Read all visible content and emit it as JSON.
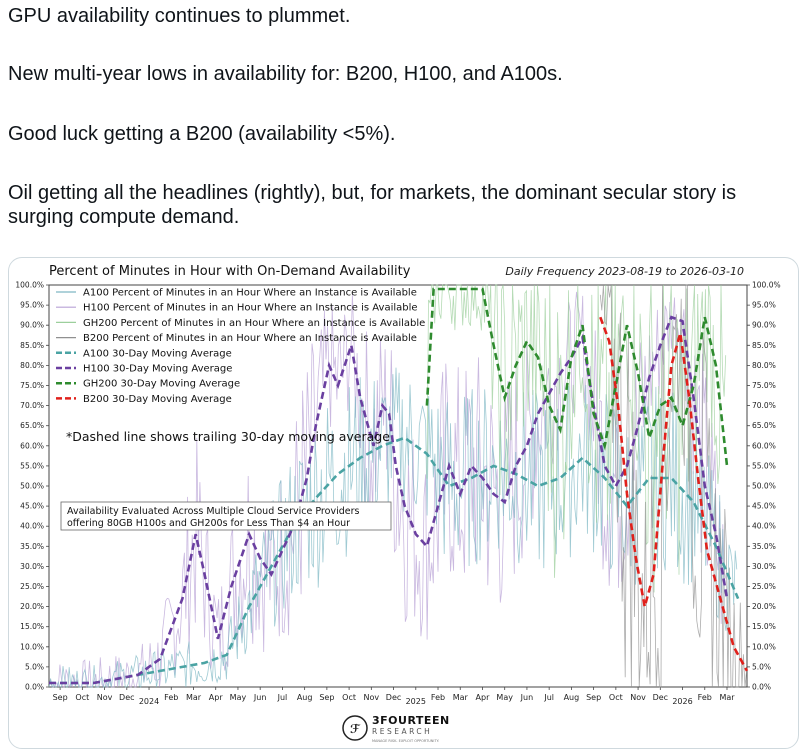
{
  "tweet": {
    "p1": "GPU availability continues to plummet.",
    "p2": "New multi-year lows in availability for: B200, H100, and A100s.",
    "p3": "Good luck getting a B200 (availability <5%).",
    "p4": "Oil getting all the headlines (rightly), but, for markets, the dominant secular story is surging compute demand."
  },
  "brand": {
    "name": "3FOURTEEN",
    "sub": "RESEARCH",
    "tagline": "MANAGE RISK. EXPLOIT OPPORTUNITY."
  },
  "chart_data": {
    "type": "line",
    "title": "Percent of Minutes in Hour with On-Demand Availability",
    "subtitle": "Daily Frequency 2023-08-19 to 2026-03-10",
    "annotation": "*Dashed line shows trailing 30-day moving average",
    "note": "Availability Evaluated Across Multiple Cloud Service Providers offering 80GB H100s and GH200s for Less Than $4 an Hour",
    "legend_position": "top-left",
    "grid": false,
    "ylim": [
      0,
      100
    ],
    "yticks": [
      "0.0%",
      "5.0%",
      "10.0%",
      "15.0%",
      "20.0%",
      "25.0%",
      "30.0%",
      "35.0%",
      "40.0%",
      "45.0%",
      "50.0%",
      "55.0%",
      "60.0%",
      "65.0%",
      "70.0%",
      "75.0%",
      "80.0%",
      "85.0%",
      "90.0%",
      "95.0%",
      "100.0%"
    ],
    "xlim": [
      0,
      31.4
    ],
    "xticks": [
      {
        "x": 0.5,
        "label": "Sep"
      },
      {
        "x": 1.5,
        "label": "Oct"
      },
      {
        "x": 2.5,
        "label": "Nov"
      },
      {
        "x": 3.5,
        "label": "Dec"
      },
      {
        "x": 4.5,
        "label": "2024"
      },
      {
        "x": 5.5,
        "label": "Feb"
      },
      {
        "x": 6.5,
        "label": "Mar"
      },
      {
        "x": 7.5,
        "label": "Apr"
      },
      {
        "x": 8.5,
        "label": "May"
      },
      {
        "x": 9.5,
        "label": "Jun"
      },
      {
        "x": 10.5,
        "label": "Jul"
      },
      {
        "x": 11.5,
        "label": "Aug"
      },
      {
        "x": 12.5,
        "label": "Sep"
      },
      {
        "x": 13.5,
        "label": "Oct"
      },
      {
        "x": 14.5,
        "label": "Nov"
      },
      {
        "x": 15.5,
        "label": "Dec"
      },
      {
        "x": 16.5,
        "label": "2025"
      },
      {
        "x": 17.5,
        "label": "Feb"
      },
      {
        "x": 18.5,
        "label": "Mar"
      },
      {
        "x": 19.5,
        "label": "Apr"
      },
      {
        "x": 20.5,
        "label": "May"
      },
      {
        "x": 21.5,
        "label": "Jun"
      },
      {
        "x": 22.5,
        "label": "Jul"
      },
      {
        "x": 23.5,
        "label": "Aug"
      },
      {
        "x": 24.5,
        "label": "Sep"
      },
      {
        "x": 25.5,
        "label": "Oct"
      },
      {
        "x": 26.5,
        "label": "Nov"
      },
      {
        "x": 27.5,
        "label": "Dec"
      },
      {
        "x": 28.5,
        "label": "2026"
      },
      {
        "x": 29.5,
        "label": "Feb"
      },
      {
        "x": 30.5,
        "label": "Mar"
      }
    ],
    "series": [
      {
        "name": "A100 Percent of Minutes in an Hour Where an Instance is Available",
        "color": "#7fb8c4",
        "style": "raw"
      },
      {
        "name": "H100 Percent of Minutes in an Hour Where an Instance is Available",
        "color": "#b8a2d6",
        "style": "raw"
      },
      {
        "name": "GH200 Percent of Minutes in an Hour Where an Instance is Available",
        "color": "#9ccf9c",
        "style": "raw"
      },
      {
        "name": "B200 Percent of Minutes in an Hour Where an Instance is Available",
        "color": "#909090",
        "style": "raw"
      },
      {
        "name": "A100 30-Day Moving Average",
        "color": "#4aa3a3",
        "style": "ma",
        "points": [
          [
            0,
            1
          ],
          [
            1,
            1
          ],
          [
            2,
            1
          ],
          [
            3,
            2
          ],
          [
            4,
            3
          ],
          [
            5,
            4
          ],
          [
            6,
            5
          ],
          [
            7,
            6
          ],
          [
            8,
            8
          ],
          [
            9,
            20
          ],
          [
            10,
            30
          ],
          [
            11,
            40
          ],
          [
            12,
            47
          ],
          [
            13,
            53
          ],
          [
            14,
            57
          ],
          [
            15,
            60
          ],
          [
            16,
            62
          ],
          [
            17,
            58
          ],
          [
            18,
            50
          ],
          [
            19,
            52
          ],
          [
            20,
            55
          ],
          [
            21,
            53
          ],
          [
            22,
            50
          ],
          [
            23,
            52
          ],
          [
            24,
            57
          ],
          [
            25,
            52
          ],
          [
            26,
            45
          ],
          [
            27,
            52
          ],
          [
            28,
            52
          ],
          [
            29,
            46
          ],
          [
            30,
            35
          ],
          [
            31,
            22
          ]
        ]
      },
      {
        "name": "H100 30-Day Moving Average",
        "color": "#6a3fa0",
        "style": "ma",
        "points": [
          [
            0,
            1
          ],
          [
            1,
            1
          ],
          [
            2,
            1
          ],
          [
            3,
            2
          ],
          [
            4,
            3
          ],
          [
            5,
            7
          ],
          [
            6,
            22
          ],
          [
            6.6,
            38
          ],
          [
            7,
            28
          ],
          [
            7.6,
            12
          ],
          [
            8.2,
            25
          ],
          [
            9,
            38
          ],
          [
            9.5,
            32
          ],
          [
            10,
            28
          ],
          [
            11,
            40
          ],
          [
            11.6,
            52
          ],
          [
            12,
            65
          ],
          [
            12.6,
            80
          ],
          [
            13,
            75
          ],
          [
            13.6,
            85
          ],
          [
            14,
            72
          ],
          [
            14.6,
            60
          ],
          [
            15,
            70
          ],
          [
            15.3,
            68
          ],
          [
            15.6,
            55
          ],
          [
            16,
            45
          ],
          [
            16.5,
            38
          ],
          [
            17,
            35
          ],
          [
            17.5,
            45
          ],
          [
            18,
            55
          ],
          [
            18.5,
            48
          ],
          [
            19,
            55
          ],
          [
            19.5,
            52
          ],
          [
            20,
            48
          ],
          [
            20.5,
            46
          ],
          [
            21,
            55
          ],
          [
            21.5,
            60
          ],
          [
            22,
            68
          ],
          [
            22.5,
            73
          ],
          [
            23,
            78
          ],
          [
            23.5,
            82
          ],
          [
            24,
            87
          ],
          [
            24.5,
            70
          ],
          [
            25,
            55
          ],
          [
            25.5,
            50
          ],
          [
            26,
            55
          ],
          [
            26.5,
            65
          ],
          [
            27,
            77
          ],
          [
            27.5,
            85
          ],
          [
            28,
            92
          ],
          [
            28.5,
            91
          ],
          [
            29,
            72
          ],
          [
            29.5,
            50
          ],
          [
            30,
            38
          ],
          [
            30.5,
            22
          ]
        ]
      },
      {
        "name": "GH200 30-Day Moving Average",
        "color": "#2e8b2e",
        "style": "ma",
        "points": [
          [
            17,
            70
          ],
          [
            17.3,
            99
          ],
          [
            18,
            99
          ],
          [
            19,
            99
          ],
          [
            19.5,
            99
          ],
          [
            20,
            85
          ],
          [
            20.5,
            72
          ],
          [
            21,
            80
          ],
          [
            21.5,
            86
          ],
          [
            22,
            82
          ],
          [
            22.5,
            70
          ],
          [
            23,
            64
          ],
          [
            23.5,
            82
          ],
          [
            24,
            90
          ],
          [
            24.5,
            68
          ],
          [
            25,
            60
          ],
          [
            25.5,
            75
          ],
          [
            26,
            90
          ],
          [
            26.5,
            78
          ],
          [
            27,
            62
          ],
          [
            27.5,
            70
          ],
          [
            28,
            72
          ],
          [
            28.5,
            65
          ],
          [
            29,
            75
          ],
          [
            29.5,
            92
          ],
          [
            30,
            80
          ],
          [
            30.5,
            55
          ]
        ]
      },
      {
        "name": "B200 30-Day Moving Average",
        "color": "#e0201b",
        "style": "ma",
        "points": [
          [
            24.8,
            92
          ],
          [
            25.2,
            86
          ],
          [
            25.6,
            70
          ],
          [
            26,
            48
          ],
          [
            26.4,
            32
          ],
          [
            26.8,
            20
          ],
          [
            27.2,
            28
          ],
          [
            27.6,
            55
          ],
          [
            28,
            80
          ],
          [
            28.4,
            88
          ],
          [
            28.8,
            72
          ],
          [
            29.2,
            52
          ],
          [
            29.6,
            34
          ],
          [
            30,
            26
          ],
          [
            30.4,
            18
          ],
          [
            30.8,
            10
          ],
          [
            31.2,
            6
          ],
          [
            31.4,
            4
          ]
        ]
      }
    ]
  }
}
